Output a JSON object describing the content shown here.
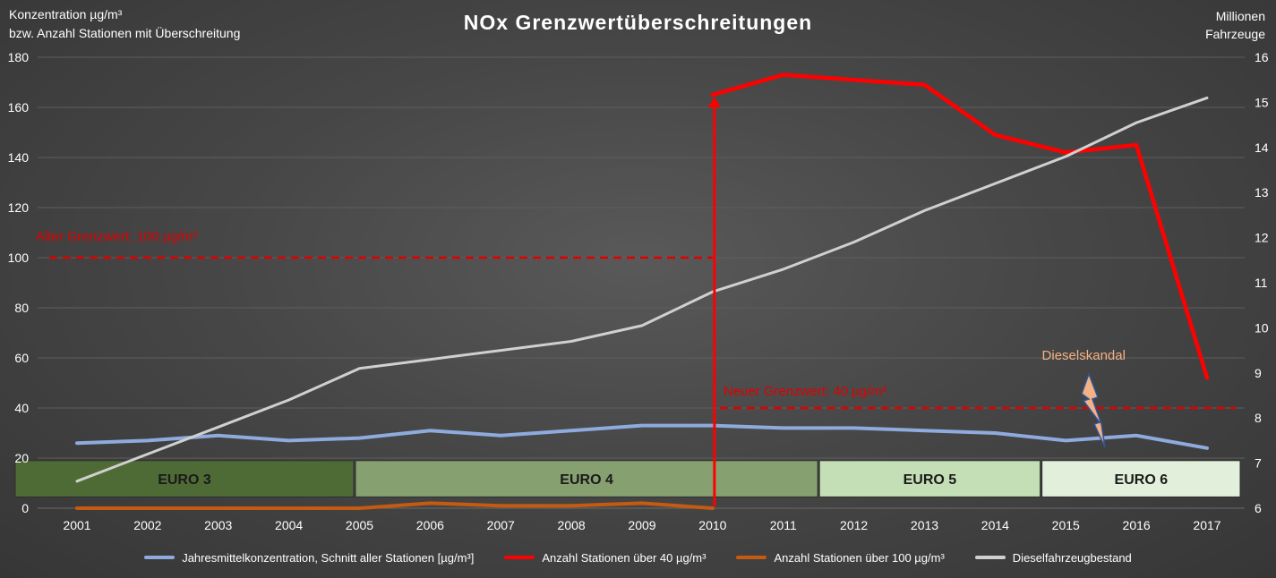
{
  "chart_title": "NOx Grenzwertüberschreitungen",
  "left_axis_label_1": "Konzentration µg/m³",
  "left_axis_label_2": "bzw. Anzahl Stationen mit Überschreitung",
  "right_axis_label_1": "Millionen",
  "right_axis_label_2": "Fahrzeuge",
  "chart_data": {
    "type": "line",
    "title": "NOx Grenzwertüberschreitungen",
    "x": [
      "2001",
      "2002",
      "2003",
      "2004",
      "2005",
      "2006",
      "2007",
      "2008",
      "2009",
      "2010",
      "2011",
      "2012",
      "2013",
      "2014",
      "2015",
      "2016",
      "2017"
    ],
    "y_left": {
      "ylim": [
        0,
        180
      ],
      "ticks": [
        "0",
        "20",
        "40",
        "60",
        "80",
        "100",
        "120",
        "140",
        "160",
        "180"
      ]
    },
    "y_right": {
      "ylim": [
        6,
        16
      ],
      "ticks": [
        "6",
        "7",
        "8",
        "9",
        "10",
        "11",
        "12",
        "13",
        "14",
        "15",
        "16"
      ]
    },
    "grid": true,
    "legend_position": "bottom",
    "series": [
      {
        "name": "Jahresmittelkonzentration, Schnitt aller Stationen [µg/m³]",
        "axis": "left",
        "color": "#8faadc",
        "values": [
          26,
          27,
          29,
          27,
          28,
          31,
          29,
          31,
          33,
          33,
          32,
          32,
          31,
          30,
          27,
          29,
          24
        ]
      },
      {
        "name": "Anzahl Stationen über 40 µg/m³",
        "axis": "left",
        "color": "#ff0000",
        "values": [
          null,
          null,
          null,
          null,
          null,
          null,
          null,
          null,
          null,
          165,
          173,
          171,
          169,
          149,
          142,
          145,
          52
        ]
      },
      {
        "name": "Anzahl Stationen über 100 µg/m³",
        "axis": "left",
        "color": "#c55a11",
        "values": [
          0,
          0,
          0,
          0,
          0,
          2,
          1,
          1,
          2,
          0,
          null,
          null,
          null,
          null,
          null,
          null,
          null
        ]
      },
      {
        "name": "Dieselfahrzeugbestand",
        "axis": "right",
        "color": "#d0d0d0",
        "values": [
          6.6,
          7.2,
          7.8,
          8.4,
          9.1,
          9.3,
          9.5,
          9.7,
          10.05,
          10.8,
          11.3,
          11.9,
          12.6,
          13.2,
          13.8,
          14.55,
          15.1
        ]
      }
    ],
    "thresholds": [
      {
        "label": "Alter Grenzwert: 100 µg/m³",
        "value": 100,
        "from": "2001",
        "to": "2010",
        "color": "#e00000"
      },
      {
        "label": "Neuer Grenzwert: 40 µg/m³",
        "value": 40,
        "from": "2010",
        "to": "2017",
        "color": "#e00000"
      }
    ],
    "vertical_marker": {
      "x": "2010",
      "from_value": 0,
      "to_value": 165,
      "color": "#ff0000"
    },
    "euro_bands": [
      {
        "label": "EURO 3",
        "from": 2001,
        "to": 2004.93,
        "color": "#4f6b35"
      },
      {
        "label": "EURO 4",
        "from": 2004.93,
        "to": 2011.5,
        "color": "#86a070"
      },
      {
        "label": "EURO 5",
        "from": 2011.5,
        "to": 2014.65,
        "color": "#c4dfb5"
      },
      {
        "label": "EURO 6",
        "from": 2014.65,
        "to": 2017.5,
        "color": "#e2efda"
      }
    ],
    "annotation": {
      "text": "Dieselskandal",
      "x": "2015",
      "value": 62,
      "color": "#f4b183"
    }
  }
}
